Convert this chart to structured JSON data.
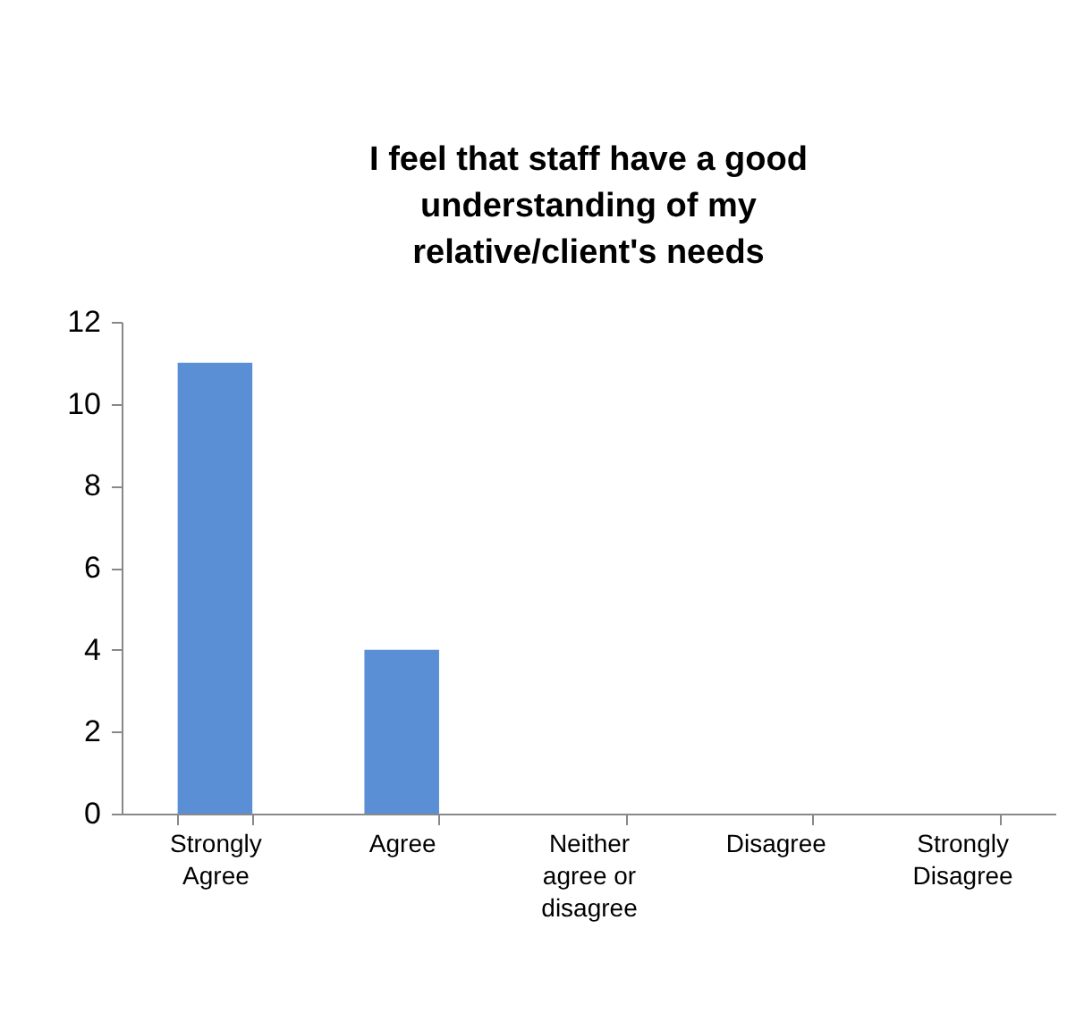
{
  "chart_data": {
    "type": "bar",
    "title": "I feel that staff have a good understanding of my relative/client's needs",
    "categories": [
      "Strongly Agree",
      "Agree",
      "Neither agree or disagree",
      "Disagree",
      "Strongly Disagree"
    ],
    "values": [
      11,
      4,
      0,
      0,
      0
    ],
    "color": "#5a8fd6",
    "ylim": [
      0,
      12
    ],
    "yticks": [
      0,
      2,
      4,
      6,
      8,
      10,
      12
    ],
    "grid": false
  }
}
